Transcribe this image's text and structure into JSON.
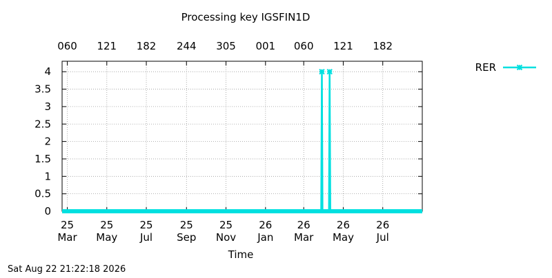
{
  "chart_data": {
    "type": "line",
    "title": "Processing key IGSFIN1D",
    "xlabel": "Time",
    "ylabel": "",
    "x_range": [
      "2025-02-21",
      "2026-08-31"
    ],
    "ylim": [
      0,
      4.3
    ],
    "yticks": [
      "0",
      "0.5",
      "1",
      "1.5",
      "2",
      "2.5",
      "3",
      "3.5",
      "4"
    ],
    "xticks_bottom": [
      {
        "date": "2025-03-01",
        "day": "25",
        "month": "Mar"
      },
      {
        "date": "2025-05-01",
        "day": "25",
        "month": "May"
      },
      {
        "date": "2025-07-01",
        "day": "25",
        "month": "Jul"
      },
      {
        "date": "2025-09-01",
        "day": "25",
        "month": "Sep"
      },
      {
        "date": "2025-11-01",
        "day": "25",
        "month": "Nov"
      },
      {
        "date": "2026-01-01",
        "day": "26",
        "month": "Jan"
      },
      {
        "date": "2026-03-01",
        "day": "26",
        "month": "Mar"
      },
      {
        "date": "2026-05-01",
        "day": "26",
        "month": "May"
      },
      {
        "date": "2026-07-01",
        "day": "26",
        "month": "Jul"
      }
    ],
    "xticks_top": [
      {
        "date": "2025-03-01",
        "label": "060"
      },
      {
        "date": "2025-05-01",
        "label": "121"
      },
      {
        "date": "2025-07-01",
        "label": "182"
      },
      {
        "date": "2025-09-01",
        "label": "244"
      },
      {
        "date": "2025-11-01",
        "label": "305"
      },
      {
        "date": "2026-01-01",
        "label": "001"
      },
      {
        "date": "2026-03-01",
        "label": "060"
      },
      {
        "date": "2026-05-01",
        "label": "121"
      },
      {
        "date": "2026-07-01",
        "label": "182"
      }
    ],
    "grid": true,
    "legend_position": "right",
    "series": [
      {
        "name": "RER",
        "color": "#00e0e0",
        "points": [
          {
            "x": "2025-02-21",
            "y": 0
          },
          {
            "x": "2026-03-28",
            "y": 0
          },
          {
            "x": "2026-03-29",
            "y": 4
          },
          {
            "x": "2026-03-30",
            "y": 0
          },
          {
            "x": "2026-04-09",
            "y": 0
          },
          {
            "x": "2026-04-10",
            "y": 4
          },
          {
            "x": "2026-04-11",
            "y": 0
          },
          {
            "x": "2026-08-31",
            "y": 0
          }
        ],
        "highlighted_points": [
          {
            "x": "2026-03-29",
            "y": 4
          },
          {
            "x": "2026-04-10",
            "y": 4
          }
        ]
      }
    ]
  },
  "footer": {
    "timestamp": "Sat Aug 22 21:22:18 2026"
  }
}
